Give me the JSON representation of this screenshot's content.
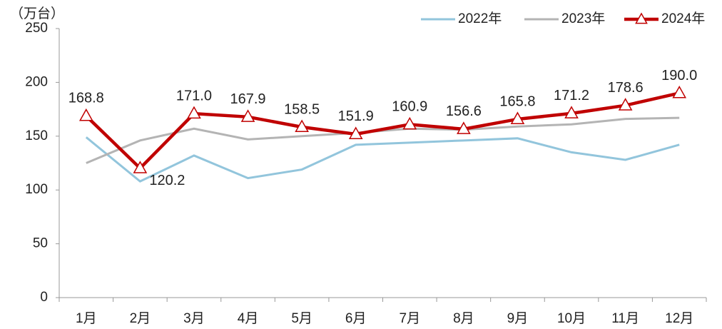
{
  "chart_data": {
    "type": "line",
    "y_label": "（万台）",
    "categories": [
      "1月",
      "2月",
      "3月",
      "4月",
      "5月",
      "6月",
      "7月",
      "8月",
      "9月",
      "10月",
      "11月",
      "12月"
    ],
    "ylim": [
      0,
      250
    ],
    "yticks": [
      0,
      50,
      100,
      150,
      200,
      250
    ],
    "legend": "top-right",
    "series": [
      {
        "name": "2022年",
        "color": "#92c5dc",
        "values": [
          149,
          108,
          132,
          111,
          119,
          142,
          144,
          146,
          148,
          135,
          128,
          142
        ]
      },
      {
        "name": "2023年",
        "color": "#b4b4b4",
        "values": [
          125,
          146,
          157,
          147,
          150,
          153,
          157,
          156,
          159,
          161,
          166,
          167
        ]
      },
      {
        "name": "2024年",
        "color": "#c00000",
        "marker": "triangle",
        "values": [
          168.8,
          120.2,
          171.0,
          167.9,
          158.5,
          151.9,
          160.9,
          156.6,
          165.8,
          171.2,
          178.6,
          190.0
        ],
        "value_labels": [
          "168.8",
          "120.2",
          "171.0",
          "167.9",
          "158.5",
          "151.9",
          "160.9",
          "156.6",
          "165.8",
          "171.2",
          "178.6",
          "190.0"
        ]
      }
    ]
  }
}
